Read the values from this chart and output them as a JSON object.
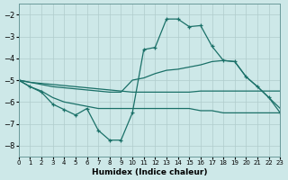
{
  "xlabel": "Humidex (Indice chaleur)",
  "background_color": "#cde8e8",
  "grid_color": "#b0cccc",
  "line_color": "#1a7068",
  "xlim": [
    0,
    23
  ],
  "ylim": [
    -8.5,
    -1.5
  ],
  "yticks": [
    -8,
    -7,
    -6,
    -5,
    -4,
    -3,
    -2
  ],
  "xticks": [
    0,
    1,
    2,
    3,
    4,
    5,
    6,
    7,
    8,
    9,
    10,
    11,
    12,
    13,
    14,
    15,
    16,
    17,
    18,
    19,
    20,
    21,
    22,
    23
  ],
  "line_bottom_x": [
    0,
    1,
    2,
    3,
    4,
    5,
    6,
    7,
    8,
    9,
    10,
    11,
    12,
    13,
    14,
    15,
    16,
    17,
    18,
    19,
    20,
    21,
    22,
    23
  ],
  "line_bottom_y": [
    -5.0,
    -5.3,
    -5.5,
    -5.8,
    -6.0,
    -6.1,
    -6.2,
    -6.3,
    -6.3,
    -6.3,
    -6.3,
    -6.3,
    -6.3,
    -6.3,
    -6.3,
    -6.3,
    -6.4,
    -6.4,
    -6.5,
    -6.5,
    -6.5,
    -6.5,
    -6.5,
    -6.5
  ],
  "line_upper_x": [
    0,
    1,
    2,
    3,
    4,
    5,
    6,
    7,
    8,
    9,
    10,
    11,
    12,
    13,
    14,
    15,
    16,
    17,
    18,
    19,
    20,
    21,
    22,
    23
  ],
  "line_upper_y": [
    -5.0,
    -5.1,
    -5.2,
    -5.3,
    -5.35,
    -5.4,
    -5.45,
    -5.5,
    -5.55,
    -5.55,
    -5.0,
    -4.9,
    -4.7,
    -4.55,
    -4.5,
    -4.4,
    -4.3,
    -4.15,
    -4.1,
    -4.15,
    -4.85,
    -5.3,
    -5.8,
    -6.3
  ],
  "line_flat_x": [
    0,
    1,
    2,
    3,
    4,
    5,
    6,
    7,
    8,
    9,
    10,
    11,
    12,
    13,
    14,
    15,
    16,
    17,
    18,
    19,
    20,
    21,
    22,
    23
  ],
  "line_flat_y": [
    -5.0,
    -5.1,
    -5.15,
    -5.2,
    -5.25,
    -5.3,
    -5.35,
    -5.4,
    -5.45,
    -5.5,
    -5.55,
    -5.55,
    -5.55,
    -5.55,
    -5.55,
    -5.55,
    -5.5,
    -5.5,
    -5.5,
    -5.5,
    -5.5,
    -5.5,
    -5.5,
    -5.5
  ],
  "line_main_x": [
    0,
    1,
    2,
    3,
    4,
    5,
    6,
    7,
    8,
    9,
    10,
    11,
    12,
    13,
    14,
    15,
    16,
    17,
    18,
    19,
    20,
    21,
    22,
    23
  ],
  "line_main_y": [
    -5.0,
    -5.3,
    -5.55,
    -6.1,
    -6.35,
    -6.6,
    -6.3,
    -7.3,
    -7.75,
    -7.75,
    -6.5,
    -3.6,
    -3.5,
    -2.2,
    -2.2,
    -2.55,
    -2.5,
    -3.45,
    -4.1,
    -4.15,
    -4.85,
    -5.3,
    -5.8,
    -6.5
  ]
}
